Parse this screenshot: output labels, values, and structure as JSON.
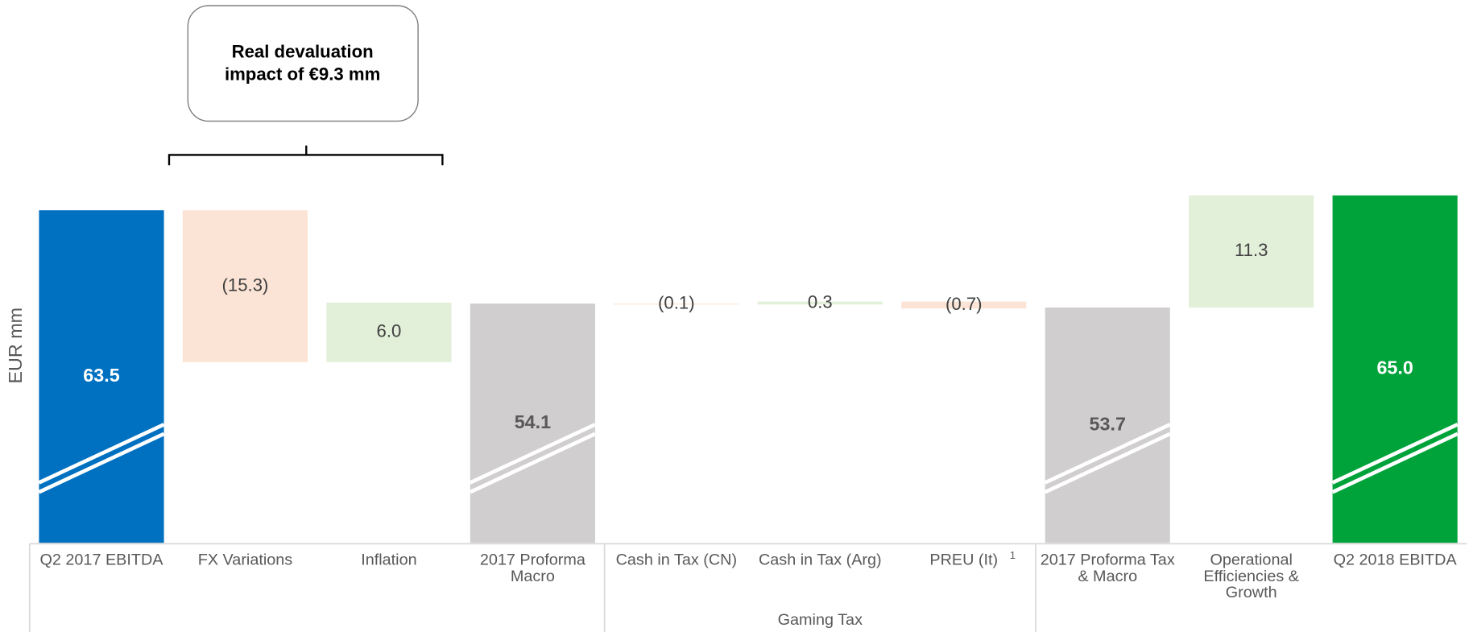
{
  "chart_data": {
    "type": "waterfall",
    "y_label": "EUR mm",
    "categories": [
      "Q2 2017 EBITDA",
      "FX Variations",
      "Inflation",
      "2017 Proforma Macro",
      "Cash in Tax (CN)",
      "Cash in Tax (Arg)",
      "PREU (It)",
      "2017 Proforma Tax & Macro",
      "Operational Efficiencies & Growth",
      "Q2 2018 EBITDA"
    ],
    "values": [
      63.5,
      -15.3,
      6.0,
      54.1,
      -0.1,
      0.3,
      -0.7,
      53.7,
      11.3,
      65.0
    ],
    "value_labels": [
      "63.5",
      "(15.3)",
      "6.0",
      "54.1",
      "(0.1)",
      "0.3",
      "(0.7)",
      "53.7",
      "11.3",
      "65.0"
    ],
    "measure": [
      "total",
      "relative",
      "relative",
      "total",
      "relative",
      "relative",
      "relative",
      "total",
      "relative",
      "total"
    ],
    "colors": [
      "#0070c0",
      "#fbe4d5",
      "#e2efd9",
      "#d0cecf",
      "#fbe4d5",
      "#e2efd9",
      "#fbe4d5",
      "#d0cecf",
      "#e2efd9",
      "#00a33a"
    ],
    "label_colors": [
      "#ffffff",
      "#404040",
      "#404040",
      "#595959",
      "#404040",
      "#404040",
      "#404040",
      "#595959",
      "#404040",
      "#ffffff"
    ],
    "footnote": "1",
    "footnote_category": 6,
    "groups": [
      {
        "name": "Gaming Tax",
        "from": 4,
        "to": 6
      }
    ],
    "annotation": "Real devaluation impact of €9.3 mm",
    "ylim": [
      30,
      66
    ],
    "axis_break": true
  }
}
